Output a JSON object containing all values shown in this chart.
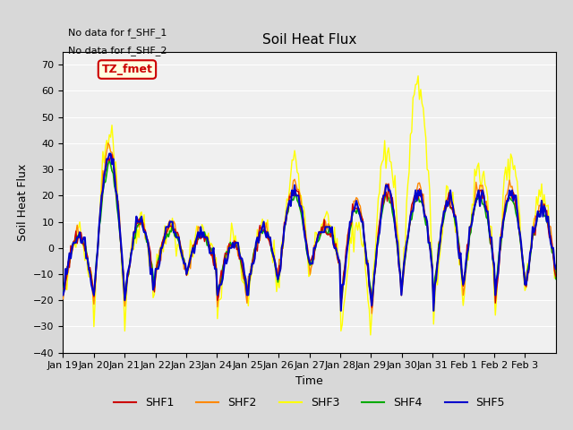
{
  "title": "Soil Heat Flux",
  "xlabel": "Time",
  "ylabel": "Soil Heat Flux",
  "ylim": [
    -40,
    75
  ],
  "yticks": [
    -40,
    -30,
    -20,
    -10,
    0,
    10,
    20,
    30,
    40,
    50,
    60,
    70
  ],
  "fig_bg_color": "#d8d8d8",
  "plot_bg_color": "#f0f0f0",
  "annotations": [
    "No data for f_SHF_1",
    "No data for f_SHF_2"
  ],
  "tz_label": "TZ_fmet",
  "legend_entries": [
    "SHF1",
    "SHF2",
    "SHF3",
    "SHF4",
    "SHF5"
  ],
  "legend_colors": [
    "#cc0000",
    "#ff8800",
    "#ffff00",
    "#00aa00",
    "#0000cc"
  ],
  "line_colors": {
    "SHF1": "#cc0000",
    "SHF2": "#ff8800",
    "SHF3": "#ffff00",
    "SHF4": "#00aa00",
    "SHF5": "#0000cc"
  },
  "x_tick_labels": [
    "Jan 19",
    "Jan 20",
    "Jan 21",
    "Jan 22",
    "Jan 23",
    "Jan 24",
    "Jan 25",
    "Jan 26",
    "Jan 27",
    "Jan 28",
    "Jan 29",
    "Jan 30",
    "Jan 31",
    "Feb 1",
    "Feb 2",
    "Feb 3"
  ],
  "n_days": 16
}
